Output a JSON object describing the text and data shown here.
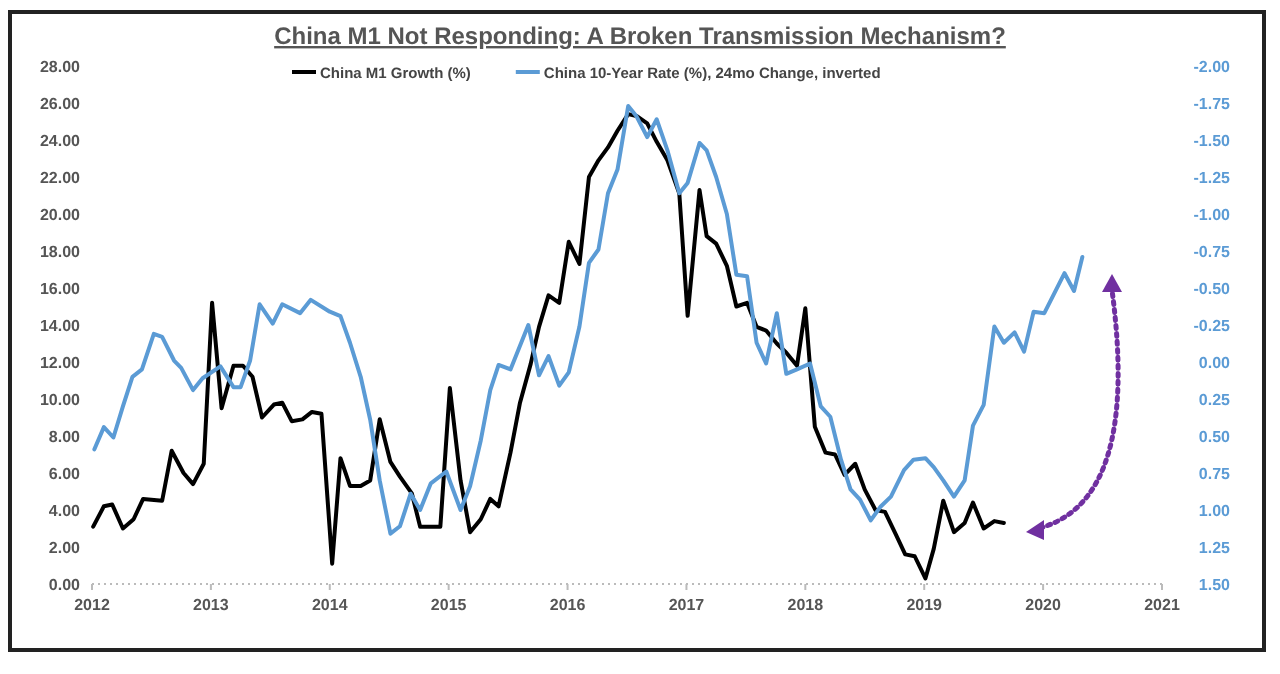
{
  "chart_data": {
    "type": "line",
    "title": "China M1 Not Responding: A Broken Transmission Mechanism?",
    "xlim": [
      2012,
      2021
    ],
    "xticks": [
      2012,
      2013,
      2014,
      2015,
      2016,
      2017,
      2018,
      2019,
      2020,
      2021
    ],
    "ylim": [
      0,
      28
    ],
    "yticks": [
      {
        "value": 0,
        "label": "0.00"
      },
      {
        "value": 2,
        "label": "2.00"
      },
      {
        "value": 4,
        "label": "4.00"
      },
      {
        "value": 6,
        "label": "6.00"
      },
      {
        "value": 8,
        "label": "8.00"
      },
      {
        "value": 10,
        "label": "10.00"
      },
      {
        "value": 12,
        "label": "12.00"
      },
      {
        "value": 14,
        "label": "14.00"
      },
      {
        "value": 16,
        "label": "16.00"
      },
      {
        "value": 18,
        "label": "18.00"
      },
      {
        "value": 20,
        "label": "20.00"
      },
      {
        "value": 22,
        "label": "22.00"
      },
      {
        "value": 24,
        "label": "24.00"
      },
      {
        "value": 26,
        "label": "26.00"
      },
      {
        "value": 28,
        "label": "28.00"
      }
    ],
    "y2lim": [
      1.5,
      -2.0
    ],
    "y2ticks": [
      {
        "value": -2,
        "label": "-2.00"
      },
      {
        "value": -1.75,
        "label": "-1.75"
      },
      {
        "value": -1.5,
        "label": "-1.50"
      },
      {
        "value": -1.25,
        "label": "-1.25"
      },
      {
        "value": -1,
        "label": "-1.00"
      },
      {
        "value": -0.75,
        "label": "-0.75"
      },
      {
        "value": -0.5,
        "label": "-0.50"
      },
      {
        "value": -0.25,
        "label": "-0.25"
      },
      {
        "value": 0,
        "label": "0.00"
      },
      {
        "value": 0.25,
        "label": "0.25"
      },
      {
        "value": 0.5,
        "label": "0.50"
      },
      {
        "value": 0.75,
        "label": "0.75"
      },
      {
        "value": 1,
        "label": "1.00"
      },
      {
        "value": 1.25,
        "label": "1.25"
      },
      {
        "value": 1.5,
        "label": "1.50"
      }
    ],
    "grid": false,
    "legend": "top",
    "marker": "none",
    "line_style": "solid",
    "series": [
      {
        "name": "China M1 Growth (%)",
        "color": "#000000",
        "x": [
          2012.01,
          2012.1,
          2012.17,
          2012.26,
          2012.35,
          2012.43,
          2012.59,
          2012.67,
          2012.77,
          2012.85,
          2012.94,
          2013.01,
          2013.09,
          2013.19,
          2013.27,
          2013.35,
          2013.43,
          2013.53,
          2013.6,
          2013.68,
          2013.77,
          2013.85,
          2013.93,
          2014.02,
          2014.09,
          2014.17,
          2014.26,
          2014.34,
          2014.42,
          2014.51,
          2014.59,
          2014.69,
          2014.76,
          2014.93,
          2015.01,
          2015.1,
          2015.18,
          2015.27,
          2015.35,
          2015.42,
          2015.52,
          2015.6,
          2015.69,
          2015.76,
          2015.84,
          2015.93,
          2016.01,
          2016.1,
          2016.18,
          2016.26,
          2016.34,
          2016.42,
          2016.51,
          2016.58,
          2016.67,
          2016.75,
          2016.84,
          2016.94,
          2017.01,
          2017.11,
          2017.17,
          2017.25,
          2017.34,
          2017.42,
          2017.51,
          2017.59,
          2017.67,
          2017.76,
          2017.84,
          2017.93,
          2018.0,
          2018.08,
          2018.17,
          2018.25,
          2018.33,
          2018.42,
          2018.5,
          2018.59,
          2018.67,
          2018.76,
          2018.84,
          2018.92,
          2019.01,
          2019.08,
          2019.16,
          2019.25,
          2019.34,
          2019.41,
          2019.5,
          2019.59,
          2019.67
        ],
        "values": [
          3.1,
          4.2,
          4.3,
          3.0,
          3.5,
          4.6,
          4.5,
          7.2,
          6.0,
          5.4,
          6.5,
          15.2,
          9.5,
          11.8,
          11.8,
          11.2,
          9.0,
          9.7,
          9.8,
          8.8,
          8.9,
          9.3,
          9.2,
          1.1,
          6.8,
          5.3,
          5.3,
          5.6,
          8.9,
          6.6,
          5.8,
          4.9,
          3.1,
          3.1,
          10.6,
          5.6,
          2.8,
          3.5,
          4.6,
          4.2,
          7.1,
          9.8,
          11.9,
          13.9,
          15.6,
          15.2,
          18.5,
          17.3,
          22.0,
          22.9,
          23.6,
          24.5,
          25.4,
          25.3,
          24.9,
          23.9,
          22.9,
          21.1,
          14.5,
          21.3,
          18.8,
          18.4,
          17.2,
          15.0,
          15.2,
          13.9,
          13.7,
          13.0,
          12.5,
          11.8,
          14.9,
          8.5,
          7.1,
          7.0,
          5.9,
          6.5,
          5.1,
          4.0,
          3.9,
          2.7,
          1.6,
          1.5,
          0.3,
          1.9,
          4.5,
          2.8,
          3.3,
          4.4,
          3.0,
          3.4,
          3.3
        ]
      },
      {
        "name": "China 10-Year Rate (%), 24mo Change, inverted",
        "color": "#5b9bd5",
        "axis": "y2",
        "x": [
          2012.02,
          2012.1,
          2012.18,
          2012.26,
          2012.34,
          2012.42,
          2012.52,
          2012.59,
          2012.69,
          2012.75,
          2012.85,
          2012.93,
          2013.08,
          2013.19,
          2013.25,
          2013.33,
          2013.41,
          2013.52,
          2013.6,
          2013.75,
          2013.84,
          2014.0,
          2014.09,
          2014.17,
          2014.26,
          2014.34,
          2014.42,
          2014.51,
          2014.59,
          2014.68,
          2014.76,
          2014.85,
          2014.98,
          2015.1,
          2015.18,
          2015.27,
          2015.35,
          2015.42,
          2015.52,
          2015.67,
          2015.76,
          2015.84,
          2015.93,
          2016.01,
          2016.1,
          2016.18,
          2016.26,
          2016.34,
          2016.42,
          2016.51,
          2016.58,
          2016.67,
          2016.75,
          2016.84,
          2016.94,
          2017.01,
          2017.11,
          2017.17,
          2017.25,
          2017.34,
          2017.42,
          2017.51,
          2017.59,
          2017.67,
          2017.76,
          2017.84,
          2017.93,
          2018.04,
          2018.13,
          2018.21,
          2018.3,
          2018.38,
          2018.46,
          2018.55,
          2018.63,
          2018.72,
          2018.83,
          2018.91,
          2019.01,
          2019.08,
          2019.16,
          2019.25,
          2019.34,
          2019.41,
          2019.5,
          2019.59,
          2019.67,
          2019.76,
          2019.84,
          2019.92,
          2020.01,
          2020.18,
          2020.26,
          2020.33
        ],
        "values": [
          0.59,
          0.44,
          0.51,
          0.3,
          0.1,
          0.05,
          -0.19,
          -0.17,
          -0.01,
          0.04,
          0.19,
          0.11,
          0.03,
          0.17,
          0.17,
          -0.01,
          -0.39,
          -0.26,
          -0.39,
          -0.33,
          -0.42,
          -0.34,
          -0.31,
          -0.13,
          0.1,
          0.39,
          0.8,
          1.16,
          1.11,
          0.89,
          1.0,
          0.82,
          0.74,
          1.0,
          0.84,
          0.53,
          0.19,
          0.02,
          0.05,
          -0.25,
          0.09,
          -0.04,
          0.16,
          0.07,
          -0.24,
          -0.67,
          -0.76,
          -1.14,
          -1.3,
          -1.73,
          -1.66,
          -1.52,
          -1.64,
          -1.43,
          -1.14,
          -1.21,
          -1.48,
          -1.43,
          -1.25,
          -1.0,
          -0.59,
          -0.58,
          -0.13,
          0.01,
          -0.33,
          0.08,
          0.05,
          0.01,
          0.3,
          0.37,
          0.66,
          0.86,
          0.93,
          1.07,
          0.98,
          0.91,
          0.73,
          0.66,
          0.65,
          0.71,
          0.8,
          0.91,
          0.8,
          0.43,
          0.29,
          -0.24,
          -0.13,
          -0.2,
          -0.07,
          -0.34,
          -0.33,
          -0.6,
          -0.48,
          -0.71
        ]
      }
    ]
  }
}
